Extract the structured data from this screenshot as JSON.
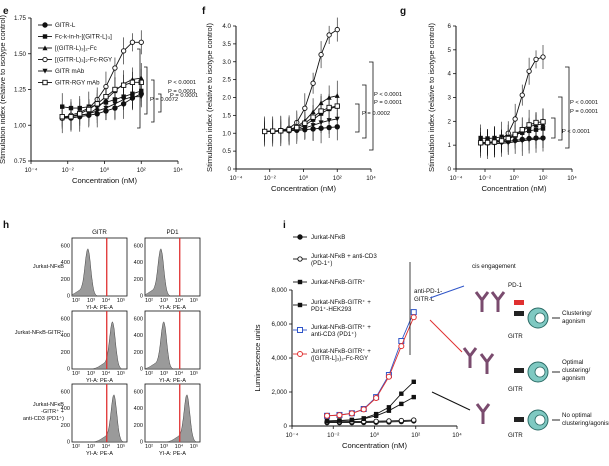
{
  "figure": {
    "panels": {
      "e": {
        "letter": "e"
      },
      "f": {
        "letter": "f"
      },
      "g": {
        "letter": "g"
      },
      "h": {
        "letter": "h"
      },
      "i": {
        "letter": "i"
      }
    }
  },
  "chart_data": [
    {
      "id": "e",
      "type": "line",
      "xlabel": "Concentration (nM)",
      "ylabel": "Stimulation index (relative to isotype control)",
      "x_scale": "log",
      "xlim": [
        0.0001,
        10000
      ],
      "x_ticks": [
        "10⁻⁴",
        "10⁻²",
        "10⁰",
        "10²",
        "10⁴"
      ],
      "ylim": [
        0.75,
        1.75
      ],
      "y_ticks": [
        "0.75",
        "1.00",
        "1.25",
        "1.50",
        "1.75"
      ],
      "x": [
        0.005,
        0.015,
        0.045,
        0.14,
        0.4,
        1.2,
        3.7,
        11,
        33,
        100
      ],
      "series": [
        {
          "name": "GITR-L",
          "marker": "filled-circle",
          "values": [
            1.05,
            1.05,
            1.06,
            1.07,
            1.08,
            1.1,
            1.12,
            1.15,
            1.19,
            1.22
          ]
        },
        {
          "name": "Fc-k-in-h-[(GITR-L)₃]",
          "marker": "filled-square",
          "values": [
            1.13,
            1.12,
            1.12,
            1.13,
            1.14,
            1.16,
            1.18,
            1.2,
            1.22,
            1.24
          ]
        },
        {
          "name": "[(GITR-L)₃]₂-Fc",
          "marker": "triangle",
          "values": [
            1.05,
            1.06,
            1.07,
            1.08,
            1.12,
            1.18,
            1.24,
            1.29,
            1.32,
            1.33
          ]
        },
        {
          "name": "[(GITR-L)₃]₂-Fc-RGY",
          "marker": "open-circle",
          "values": [
            1.05,
            1.07,
            1.09,
            1.12,
            1.18,
            1.27,
            1.4,
            1.52,
            1.58,
            1.58
          ]
        },
        {
          "name": "GITR mAb",
          "marker": "inverted-triangle",
          "values": [
            1.06,
            1.06,
            1.07,
            1.08,
            1.1,
            1.12,
            1.15,
            1.18,
            1.2,
            1.2
          ]
        },
        {
          "name": "GITR-RGY mAb",
          "marker": "open-square",
          "values": [
            1.06,
            1.06,
            1.08,
            1.11,
            1.15,
            1.2,
            1.25,
            1.28,
            1.3,
            1.3
          ]
        }
      ],
      "annotations": [
        "P < 0.0001",
        "P = 0.0001",
        "P = 0.0001",
        "P = 0.0072"
      ]
    },
    {
      "id": "f",
      "type": "line",
      "xlabel": "Concentration (nM)",
      "ylabel": "Stimulation index (relative to isotype control)",
      "x_scale": "log",
      "xlim": [
        0.0001,
        10000
      ],
      "x_ticks": [
        "10⁻⁴",
        "10⁻²",
        "10⁰",
        "10²",
        "10⁴"
      ],
      "ylim": [
        0,
        4
      ],
      "y_ticks": [
        "0",
        "0.5",
        "1.0",
        "1.5",
        "2.0",
        "2.5",
        "3.0",
        "3.5",
        "4.0"
      ],
      "x": [
        0.005,
        0.015,
        0.045,
        0.14,
        0.4,
        1.2,
        3.7,
        11,
        33,
        100
      ],
      "series": [
        {
          "values": [
            1.05,
            1.05,
            1.06,
            1.07,
            1.08,
            1.1,
            1.12,
            1.14,
            1.16,
            1.18
          ]
        },
        {
          "values": [
            1.05,
            1.05,
            1.06,
            1.08,
            1.12,
            1.22,
            1.38,
            1.55,
            1.68,
            1.75
          ]
        },
        {
          "values": [
            1.05,
            1.06,
            1.07,
            1.1,
            1.18,
            1.35,
            1.6,
            1.85,
            2.0,
            2.05
          ]
        },
        {
          "values": [
            1.05,
            1.06,
            1.08,
            1.14,
            1.3,
            1.7,
            2.4,
            3.2,
            3.75,
            3.9
          ]
        },
        {
          "values": [
            1.05,
            1.05,
            1.06,
            1.07,
            1.1,
            1.15,
            1.22,
            1.3,
            1.36,
            1.4
          ]
        },
        {
          "values": [
            1.05,
            1.06,
            1.07,
            1.1,
            1.16,
            1.28,
            1.45,
            1.62,
            1.72,
            1.76
          ]
        }
      ],
      "annotations": [
        "P < 0.0001",
        "P = 0.0001",
        "P = 0.0002"
      ]
    },
    {
      "id": "g",
      "type": "line",
      "xlabel": "Concentration (nM)",
      "ylabel": "Stimulation index (relative to isotype control)",
      "x_scale": "log",
      "xlim": [
        0.0001,
        10000
      ],
      "x_ticks": [
        "10⁻⁴",
        "10⁻²",
        "10⁰",
        "10²",
        "10⁴"
      ],
      "ylim": [
        0,
        6
      ],
      "y_ticks": [
        "0",
        "1",
        "2",
        "3",
        "4",
        "5",
        "6"
      ],
      "x": [
        0.005,
        0.015,
        0.045,
        0.14,
        0.4,
        1.2,
        3.7,
        11,
        33,
        100
      ],
      "series": [
        {
          "values": [
            1.1,
            1.1,
            1.12,
            1.14,
            1.16,
            1.2,
            1.24,
            1.28,
            1.3,
            1.3
          ]
        },
        {
          "values": [
            1.3,
            1.28,
            1.3,
            1.35,
            1.4,
            1.45,
            1.52,
            1.6,
            1.65,
            1.7
          ]
        },
        {
          "values": [
            1.1,
            1.1,
            1.12,
            1.16,
            1.25,
            1.4,
            1.6,
            1.78,
            1.85,
            1.88
          ]
        },
        {
          "values": [
            1.1,
            1.12,
            1.15,
            1.25,
            1.5,
            2.1,
            3.1,
            4.1,
            4.6,
            4.7
          ]
        },
        {
          "values": [
            1.05,
            1.05,
            1.06,
            1.08,
            1.1,
            1.14,
            1.18,
            1.22,
            1.25,
            1.26
          ]
        },
        {
          "values": [
            1.1,
            1.11,
            1.13,
            1.18,
            1.28,
            1.45,
            1.65,
            1.85,
            1.95,
            1.98
          ]
        }
      ],
      "annotations": [
        "P < 0.0001",
        "P = 0.0001",
        "P < 0.0001"
      ]
    },
    {
      "id": "h",
      "type": "histogram",
      "columns": [
        "GITR",
        "PD1"
      ],
      "rows": [
        "Jurkat-NFκB",
        "Jurkat-NFκB-GITR⁺",
        "Jurkat-NFκB-GITR⁺ + anti-CD3 (PD1⁺)"
      ],
      "xlabel": "YI-A: PE-A",
      "x_ticks": [
        "10²",
        "10³",
        "10⁴",
        "10⁵"
      ],
      "y_ticks": [
        "0",
        "200",
        "400",
        "600"
      ],
      "peak_log_positions": [
        [
          2.6,
          2.6
        ],
        [
          4.3,
          2.8
        ],
        [
          4.4,
          4.4
        ]
      ]
    },
    {
      "id": "i",
      "type": "line",
      "xlabel": "Concentration (nM)",
      "ylabel": "Luminescence units",
      "x_scale": "log",
      "xlim": [
        0.0001,
        10000
      ],
      "x_ticks": [
        "10⁻⁴",
        "10⁻²",
        "10⁰",
        "10²",
        "10⁴"
      ],
      "ylim": [
        0,
        8000
      ],
      "y_ticks": [
        "0",
        "2,000",
        "4,000",
        "6,000",
        "8,000"
      ],
      "x": [
        0.005,
        0.02,
        0.08,
        0.3,
        1.2,
        5,
        20,
        80
      ],
      "series": [
        {
          "name": "Jurkat-NFκB",
          "marker": "filled-circle",
          "values": [
            200,
            200,
            200,
            210,
            220,
            240,
            260,
            300
          ]
        },
        {
          "name": "Jurkat-NFκB + anti-CD3 (PD-1⁺)",
          "marker": "open-circle",
          "values": [
            250,
            250,
            260,
            270,
            280,
            300,
            320,
            350
          ]
        },
        {
          "name": "Jurkat-NFκB-GITR⁺",
          "marker": "filled-square",
          "values": [
            300,
            320,
            350,
            420,
            600,
            900,
            1300,
            1700
          ]
        },
        {
          "name": "Jurkat-NFκB-GITR⁺ + PD1⁺-HEK293",
          "marker": "filled-square",
          "values": [
            300,
            320,
            360,
            450,
            700,
            1100,
            1900,
            2600
          ]
        },
        {
          "name": "Jurkat-NFκB-GITR⁺ + anti-CD3 (PD1⁺)",
          "marker": "open-square-blue",
          "values": [
            600,
            650,
            750,
            1000,
            1700,
            3000,
            5000,
            6700
          ]
        },
        {
          "name": "Jurkat-NFκB-GITR⁺ + ([GITR-L]₃)₂-Fc-RGY",
          "marker": "open-circle-red",
          "values": [
            600,
            640,
            740,
            980,
            1650,
            2900,
            4700,
            6400
          ]
        }
      ],
      "legend_placement": "top-left",
      "annotations": [
        "anti-PD-1-GITR-L",
        "cis engagement",
        "PD-1",
        "GITR",
        "Clustering/ agonism",
        "Optimal clustering/ agonism",
        "No optimal clustering/agonism"
      ]
    }
  ],
  "colors": {
    "blue": "#2f55c8",
    "red": "#e03030",
    "teal": "#7fc9c2",
    "grey_fill": "#9a9a9a"
  }
}
